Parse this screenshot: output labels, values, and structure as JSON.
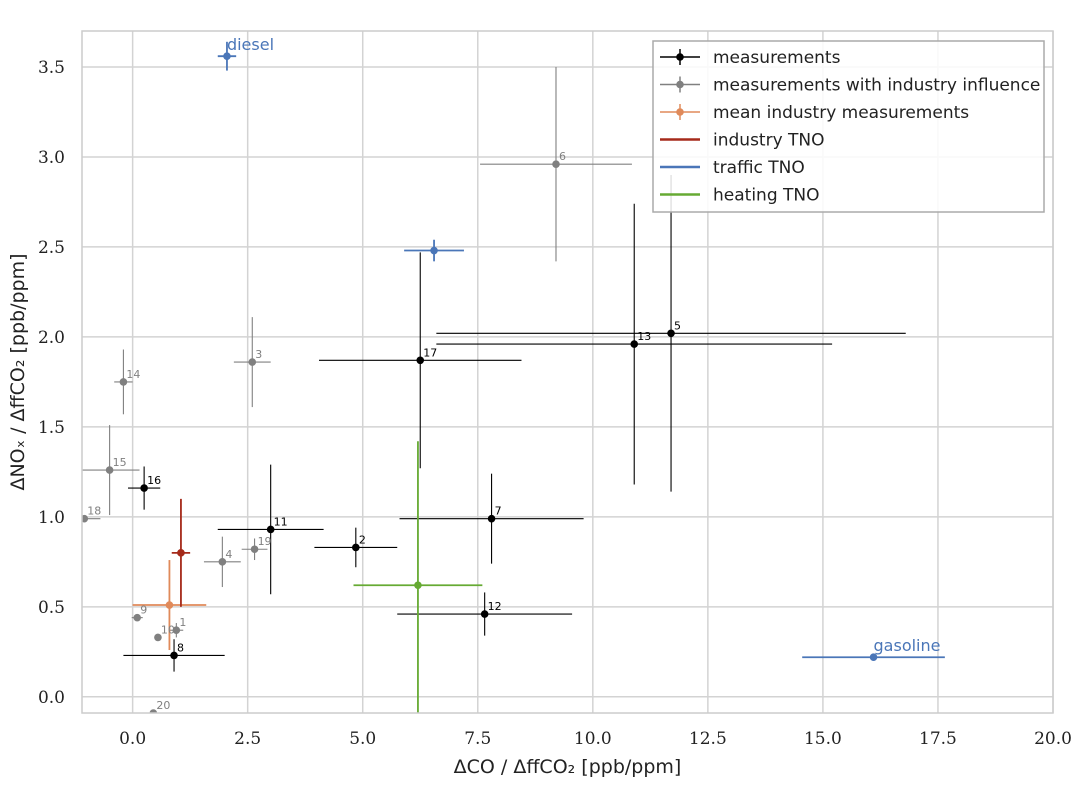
{
  "chart_data": {
    "type": "scatter",
    "xlabel": "ΔCO / ΔffCO₂ [ppb/ppm]",
    "ylabel": "ΔNOₓ / ΔffCO₂ [ppb/ppm]",
    "xlim": [
      -1.1,
      20.0
    ],
    "ylim": [
      -0.09,
      3.7
    ],
    "x_ticks": [
      0.0,
      2.5,
      5.0,
      7.5,
      10.0,
      12.5,
      15.0,
      17.5,
      20.0
    ],
    "y_ticks": [
      0.0,
      0.5,
      1.0,
      1.5,
      2.0,
      2.5,
      3.0,
      3.5
    ],
    "x_tick_labels": [
      "0.0",
      "2.5",
      "5.0",
      "7.5",
      "10.0",
      "12.5",
      "15.0",
      "17.5",
      "20.0"
    ],
    "y_tick_labels": [
      "0.0",
      "0.5",
      "1.0",
      "1.5",
      "2.0",
      "2.5",
      "3.0",
      "3.5"
    ],
    "grid": true,
    "legend_position": "top-right",
    "colors": {
      "measurements": "#000000",
      "industry_influence": "#808080",
      "mean_industry": "#e08a5a",
      "industry_tno": "#a52a1a",
      "traffic_tno": "#4a76b8",
      "heating_tno": "#66aa33"
    },
    "legend": [
      {
        "label": "measurements",
        "kind": "errorbar",
        "color": "#000000"
      },
      {
        "label": "measurements with industry influence",
        "kind": "errorbar",
        "color": "#808080"
      },
      {
        "label": "mean industry measurements",
        "kind": "errorbar",
        "color": "#e08a5a"
      },
      {
        "label": "industry TNO",
        "kind": "line",
        "color": "#a52a1a"
      },
      {
        "label": "traffic TNO",
        "kind": "line",
        "color": "#4a76b8"
      },
      {
        "label": "heating TNO",
        "kind": "line",
        "color": "#66aa33"
      }
    ],
    "series": [
      {
        "name": "measurements",
        "color": "#000000",
        "points": [
          {
            "label": "2",
            "x": 4.85,
            "y": 0.83,
            "xerr": [
              0.9,
              0.9
            ],
            "yerr": [
              0.11,
              0.11
            ]
          },
          {
            "label": "5",
            "x": 11.7,
            "y": 2.02,
            "xerr": [
              5.1,
              5.1
            ],
            "yerr": [
              0.88,
              0.88
            ]
          },
          {
            "label": "7",
            "x": 7.8,
            "y": 0.99,
            "xerr": [
              2.0,
              2.0
            ],
            "yerr": [
              0.25,
              0.25
            ]
          },
          {
            "label": "8",
            "x": 0.9,
            "y": 0.23,
            "xerr": [
              1.1,
              1.1
            ],
            "yerr": [
              0.09,
              0.09
            ]
          },
          {
            "label": "11",
            "x": 3.0,
            "y": 0.93,
            "xerr": [
              1.15,
              1.15
            ],
            "yerr": [
              0.36,
              0.36
            ]
          },
          {
            "label": "12",
            "x": 7.65,
            "y": 0.46,
            "xerr": [
              1.9,
              1.9
            ],
            "yerr": [
              0.12,
              0.12
            ]
          },
          {
            "label": "13",
            "x": 10.9,
            "y": 1.96,
            "xerr": [
              4.3,
              4.3
            ],
            "yerr": [
              0.78,
              0.78
            ]
          },
          {
            "label": "16",
            "x": 0.25,
            "y": 1.16,
            "xerr": [
              0.35,
              0.35
            ],
            "yerr": [
              0.12,
              0.12
            ]
          },
          {
            "label": "17",
            "x": 6.25,
            "y": 1.87,
            "xerr": [
              2.2,
              2.2
            ],
            "yerr": [
              0.6,
              0.6
            ]
          }
        ]
      },
      {
        "name": "measurements with industry influence",
        "color": "#808080",
        "points": [
          {
            "label": "1",
            "x": 0.95,
            "y": 0.37,
            "xerr": [
              0.15,
              0.15
            ],
            "yerr": [
              0.04,
              0.04
            ]
          },
          {
            "label": "3",
            "x": 2.6,
            "y": 1.86,
            "xerr": [
              0.4,
              0.4
            ],
            "yerr": [
              0.25,
              0.25
            ]
          },
          {
            "label": "4",
            "x": 1.95,
            "y": 0.75,
            "xerr": [
              0.4,
              0.4
            ],
            "yerr": [
              0.14,
              0.14
            ]
          },
          {
            "label": "6",
            "x": 9.2,
            "y": 2.96,
            "xerr": [
              1.65,
              1.65
            ],
            "yerr": [
              0.54,
              0.54
            ]
          },
          {
            "label": "9",
            "x": 0.1,
            "y": 0.44,
            "xerr": [
              0.12,
              0.12
            ],
            "yerr": [
              0.02,
              0.02
            ]
          },
          {
            "label": "10",
            "x": 0.55,
            "y": 0.33,
            "xerr": [
              0.05,
              0.05
            ],
            "yerr": [
              0.02,
              0.02
            ]
          },
          {
            "label": "14",
            "x": -0.2,
            "y": 1.75,
            "xerr": [
              0.2,
              0.2
            ],
            "yerr": [
              0.18,
              0.18
            ]
          },
          {
            "label": "15",
            "x": -0.5,
            "y": 1.26,
            "xerr": [
              0.65,
              0.65
            ],
            "yerr": [
              0.25,
              0.25
            ]
          },
          {
            "label": "18",
            "x": -1.05,
            "y": 0.99,
            "xerr": [
              0.35,
              0.35
            ],
            "yerr": [
              0.01,
              0.01
            ]
          },
          {
            "label": "19",
            "x": 2.65,
            "y": 0.82,
            "xerr": [
              0.28,
              0.28
            ],
            "yerr": [
              0.06,
              0.06
            ]
          },
          {
            "label": "20",
            "x": 0.45,
            "y": -0.09,
            "xerr": [
              0.4,
              0.4
            ],
            "yerr": [
              0.0,
              0.0
            ]
          }
        ]
      },
      {
        "name": "mean industry measurements",
        "color": "#e08a5a",
        "points": [
          {
            "label": "",
            "x": 0.8,
            "y": 0.51,
            "xerr": [
              0.8,
              0.8
            ],
            "yerr": [
              0.25,
              0.25
            ]
          }
        ]
      },
      {
        "name": "industry TNO",
        "color": "#a52a1a",
        "points": [
          {
            "label": "",
            "x": 1.05,
            "y": 0.8,
            "xerr": [
              0.2,
              0.2
            ],
            "yerr": [
              0.3,
              0.3
            ]
          }
        ]
      },
      {
        "name": "traffic TNO",
        "color": "#4a76b8",
        "points": [
          {
            "label": "diesel",
            "x": 2.05,
            "y": 3.56,
            "xerr": [
              0.2,
              0.2
            ],
            "yerr": [
              0.08,
              0.08
            ]
          },
          {
            "label": "",
            "x": 6.55,
            "y": 2.48,
            "xerr": [
              0.65,
              0.65
            ],
            "yerr": [
              0.06,
              0.06
            ]
          },
          {
            "label": "gasoline",
            "x": 16.1,
            "y": 0.22,
            "xerr": [
              1.55,
              1.55
            ],
            "yerr": [
              0.0,
              0.0
            ]
          }
        ]
      },
      {
        "name": "heating TNO",
        "color": "#66aa33",
        "points": [
          {
            "label": "",
            "x": 6.2,
            "y": 0.62,
            "xerr": [
              1.4,
              1.4
            ],
            "yerr": [
              0.8,
              0.8
            ]
          }
        ]
      }
    ]
  }
}
